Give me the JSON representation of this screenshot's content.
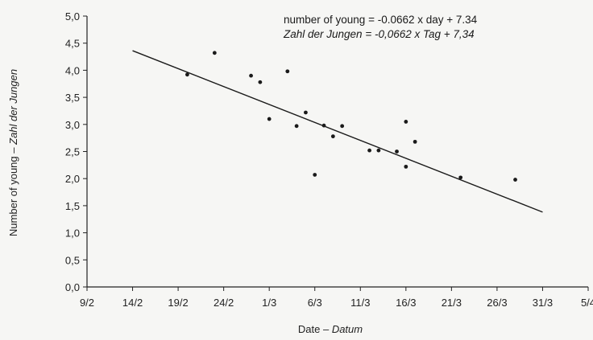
{
  "chart_data": {
    "type": "scatter",
    "title": "",
    "equation_en": "number of young = -0.0662 x day + 7.34",
    "equation_de": "Zahl der Jungen = -0,0662 x Tag + 7,34",
    "xlabel": {
      "en": "Date",
      "sep": " – ",
      "de": "Datum"
    },
    "ylabel": {
      "en": "Number of young",
      "sep": " – ",
      "de": "Zahl der Jungen"
    },
    "x_ticks": [
      "9/2",
      "14/2",
      "19/2",
      "24/2",
      "1/3",
      "6/3",
      "11/3",
      "16/3",
      "21/3",
      "26/3",
      "31/3",
      "5/4"
    ],
    "y_ticks": [
      "0,0",
      "0,5",
      "1,0",
      "1,5",
      "2,0",
      "2,5",
      "3,0",
      "3,5",
      "4,0",
      "4,5",
      "5,0"
    ],
    "ylim": [
      0,
      5
    ],
    "xlim": [
      "9/2",
      "5/4"
    ],
    "grid": false,
    "points": [
      {
        "x": "20/2",
        "y": 3.92
      },
      {
        "x": "23/2",
        "y": 4.32
      },
      {
        "x": "27/2",
        "y": 3.9
      },
      {
        "x": "28/2",
        "y": 3.78
      },
      {
        "x": "1/3",
        "y": 3.1
      },
      {
        "x": "3/3",
        "y": 3.98
      },
      {
        "x": "4/3",
        "y": 2.97
      },
      {
        "x": "5/3",
        "y": 3.22
      },
      {
        "x": "6/3",
        "y": 2.07
      },
      {
        "x": "7/3",
        "y": 2.98
      },
      {
        "x": "8/3",
        "y": 2.78
      },
      {
        "x": "9/3",
        "y": 2.97
      },
      {
        "x": "12/3",
        "y": 2.52
      },
      {
        "x": "13/3",
        "y": 2.52
      },
      {
        "x": "15/3",
        "y": 2.5
      },
      {
        "x": "16/3",
        "y": 3.05
      },
      {
        "x": "16/3",
        "y": 2.22
      },
      {
        "x": "17/3",
        "y": 2.68
      },
      {
        "x": "22/3",
        "y": 2.02
      },
      {
        "x": "28/3",
        "y": 1.98
      }
    ],
    "trend_line": {
      "slope": -0.0662,
      "intercept": 7.34,
      "from": "14/2",
      "to": "31/3"
    }
  }
}
